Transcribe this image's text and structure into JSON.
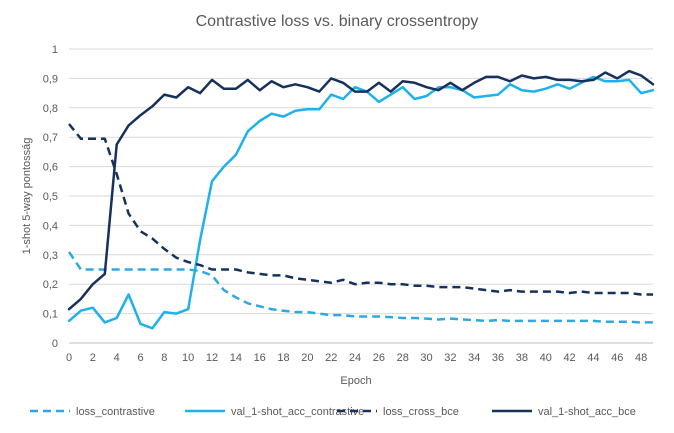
{
  "chart_data": {
    "type": "line",
    "title": "Contrastive loss vs. binary crossentropy",
    "xlabel": "Epoch",
    "ylabel": "1-shot 5-way pontosság",
    "xlim": [
      0,
      49
    ],
    "ylim": [
      0,
      1
    ],
    "x_ticks": [
      0,
      2,
      4,
      6,
      8,
      10,
      12,
      14,
      16,
      18,
      20,
      22,
      24,
      26,
      28,
      30,
      32,
      34,
      36,
      38,
      40,
      42,
      44,
      46,
      48
    ],
    "y_ticks": [
      0,
      0.1,
      0.2,
      0.3,
      0.4,
      0.5,
      0.6,
      0.7,
      0.8,
      0.9,
      1
    ],
    "y_tick_labels": [
      "0",
      "0,1",
      "0,2",
      "0,3",
      "0,4",
      "0,5",
      "0,6",
      "0,7",
      "0,8",
      "0,9",
      "1"
    ],
    "grid": true,
    "legend_position": "bottom",
    "x": [
      0,
      1,
      2,
      3,
      4,
      5,
      6,
      7,
      8,
      9,
      10,
      11,
      12,
      13,
      14,
      15,
      16,
      17,
      18,
      19,
      20,
      21,
      22,
      23,
      24,
      25,
      26,
      27,
      28,
      29,
      30,
      31,
      32,
      33,
      34,
      35,
      36,
      37,
      38,
      39,
      40,
      41,
      42,
      43,
      44,
      45,
      46,
      47,
      48,
      49
    ],
    "series": [
      {
        "name": "loss_contrastive",
        "color": "#2ea8e0",
        "dashed": true,
        "values": [
          0.31,
          0.25,
          0.25,
          0.25,
          0.25,
          0.25,
          0.25,
          0.25,
          0.25,
          0.25,
          0.25,
          0.245,
          0.23,
          0.18,
          0.155,
          0.135,
          0.125,
          0.115,
          0.11,
          0.105,
          0.105,
          0.1,
          0.095,
          0.095,
          0.09,
          0.09,
          0.09,
          0.088,
          0.085,
          0.085,
          0.083,
          0.08,
          0.083,
          0.08,
          0.078,
          0.075,
          0.078,
          0.075,
          0.075,
          0.075,
          0.075,
          0.075,
          0.075,
          0.075,
          0.075,
          0.072,
          0.072,
          0.072,
          0.07,
          0.07
        ]
      },
      {
        "name": "val_1-shot_acc_contrastive",
        "color": "#1fb1ec",
        "dashed": false,
        "values": [
          0.075,
          0.11,
          0.12,
          0.07,
          0.085,
          0.165,
          0.065,
          0.05,
          0.105,
          0.1,
          0.115,
          0.35,
          0.55,
          0.6,
          0.64,
          0.72,
          0.755,
          0.78,
          0.77,
          0.79,
          0.795,
          0.795,
          0.845,
          0.83,
          0.87,
          0.855,
          0.82,
          0.845,
          0.87,
          0.83,
          0.84,
          0.87,
          0.87,
          0.86,
          0.835,
          0.84,
          0.845,
          0.88,
          0.86,
          0.855,
          0.865,
          0.88,
          0.865,
          0.885,
          0.905,
          0.89,
          0.89,
          0.895,
          0.85,
          0.86
        ]
      },
      {
        "name": "loss_cross_bce",
        "color": "#16325c",
        "dashed": true,
        "values": [
          0.745,
          0.695,
          0.695,
          0.695,
          0.575,
          0.44,
          0.38,
          0.355,
          0.32,
          0.29,
          0.275,
          0.265,
          0.25,
          0.25,
          0.25,
          0.24,
          0.235,
          0.23,
          0.23,
          0.22,
          0.215,
          0.21,
          0.205,
          0.215,
          0.2,
          0.205,
          0.205,
          0.2,
          0.2,
          0.195,
          0.195,
          0.19,
          0.19,
          0.19,
          0.185,
          0.18,
          0.175,
          0.18,
          0.175,
          0.175,
          0.175,
          0.175,
          0.17,
          0.175,
          0.17,
          0.17,
          0.17,
          0.17,
          0.165,
          0.165
        ]
      },
      {
        "name": "val_1-shot_acc_bce",
        "color": "#16325c",
        "dashed": false,
        "values": [
          0.115,
          0.15,
          0.2,
          0.235,
          0.675,
          0.74,
          0.775,
          0.805,
          0.845,
          0.835,
          0.87,
          0.85,
          0.895,
          0.865,
          0.865,
          0.895,
          0.86,
          0.89,
          0.87,
          0.88,
          0.87,
          0.855,
          0.9,
          0.885,
          0.855,
          0.855,
          0.885,
          0.855,
          0.89,
          0.885,
          0.87,
          0.86,
          0.885,
          0.86,
          0.885,
          0.905,
          0.905,
          0.89,
          0.91,
          0.9,
          0.905,
          0.895,
          0.895,
          0.89,
          0.895,
          0.92,
          0.9,
          0.925,
          0.91,
          0.88
        ]
      }
    ]
  }
}
